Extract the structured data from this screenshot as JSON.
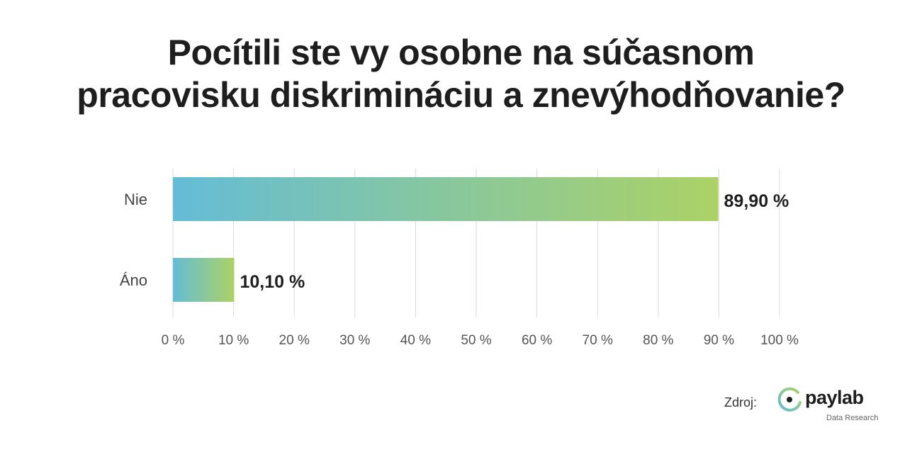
{
  "chart_data": {
    "type": "bar",
    "orientation": "horizontal",
    "title": "Pocítili ste vy osobne na súčasnom pracovisku diskrimináciu a znevýhodňovanie?",
    "title_lines": [
      "Pocítili ste vy osobne na súčasnom",
      "pracovisku diskrimináciu a znevýhodňovanie?"
    ],
    "categories": [
      "Nie",
      "Áno"
    ],
    "values": [
      89.9,
      10.1
    ],
    "value_labels": [
      "89,90 %",
      "10,10 %"
    ],
    "xlim": [
      0,
      100
    ],
    "xticks": [
      0,
      10,
      20,
      30,
      40,
      50,
      60,
      70,
      80,
      90,
      100
    ],
    "xtick_labels": [
      "0 %",
      "10 %",
      "20 %",
      "30 %",
      "40 %",
      "50 %",
      "60 %",
      "70 %",
      "80 %",
      "90 %",
      "100 %"
    ],
    "xlabel": "",
    "ylabel": "",
    "grid": "vertical",
    "legend": "none",
    "colors": {
      "bar_start": "#64bcd6",
      "bar_end": "#acd266",
      "grid": "#d9d9d9",
      "tick_text": "#555555",
      "category_text": "#444444",
      "value_text": "#1e1e1e"
    }
  },
  "footer": {
    "source_label": "Zdroj:",
    "logo_name": "paylab",
    "logo_sub": "Data Research",
    "logo_icon": "paylab-logo-icon"
  }
}
